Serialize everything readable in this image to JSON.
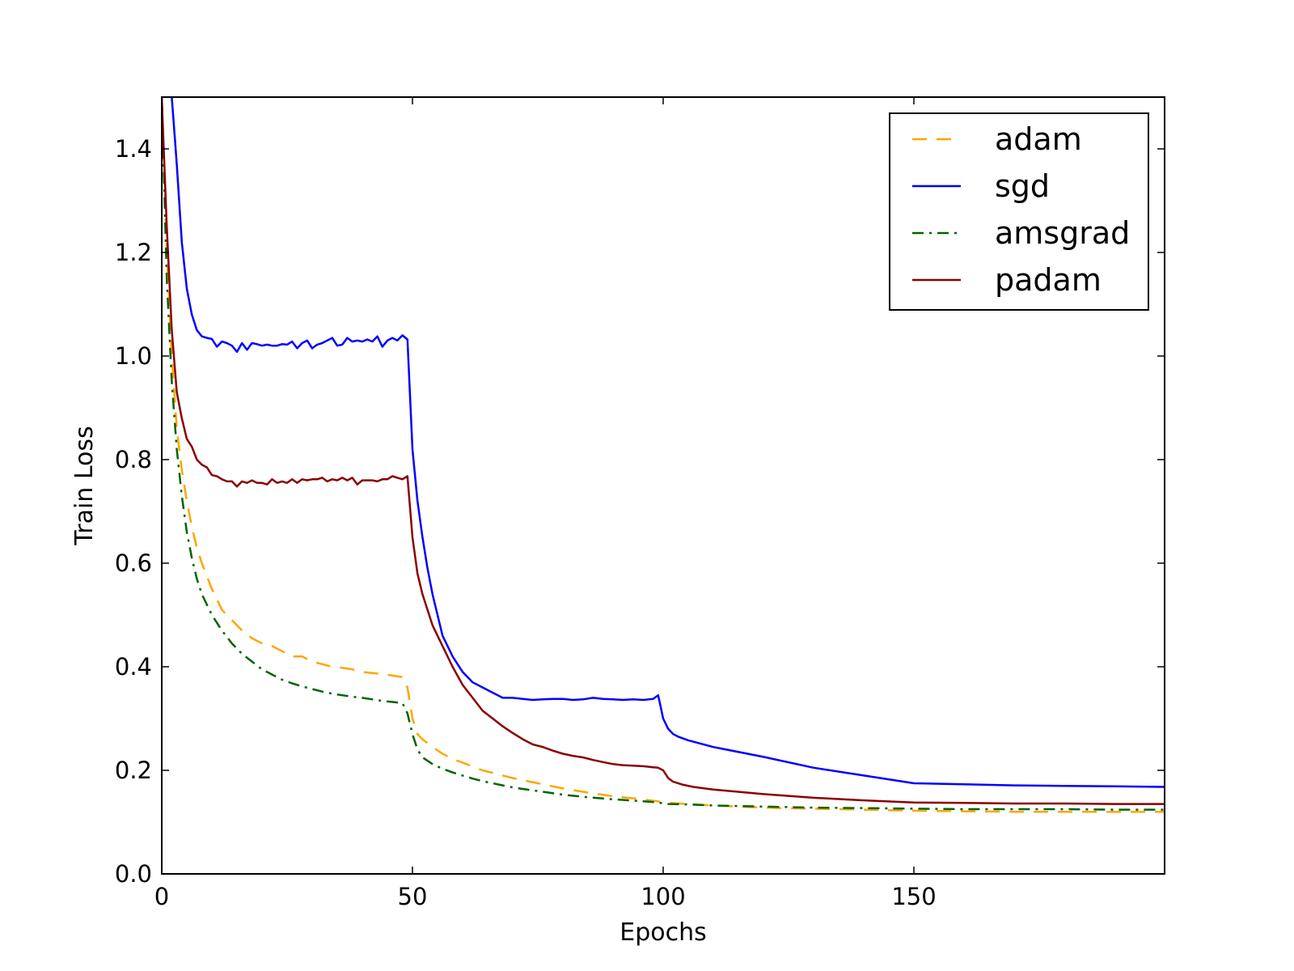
{
  "chart_data": {
    "type": "line",
    "xlabel": "Epochs",
    "ylabel": "Train Loss",
    "xlim": [
      0,
      200
    ],
    "ylim": [
      0,
      1.5
    ],
    "xticks": [
      0,
      50,
      100,
      150
    ],
    "yticks": [
      0.0,
      0.2,
      0.4,
      0.6,
      0.8,
      1.0,
      1.2,
      1.4
    ],
    "xtick_labels": [
      "0",
      "50",
      "100",
      "150"
    ],
    "ytick_labels": [
      "0.0",
      "0.2",
      "0.4",
      "0.6",
      "0.8",
      "1.0",
      "1.2",
      "1.4"
    ],
    "grid": false,
    "legend_position": "top-right",
    "series": [
      {
        "name": "adam",
        "color": "#FFA500",
        "style": "dashed",
        "x": [
          0,
          1,
          2,
          3,
          4,
          5,
          6,
          7,
          8,
          10,
          12,
          14,
          16,
          18,
          20,
          22,
          24,
          26,
          28,
          30,
          32,
          34,
          36,
          38,
          40,
          42,
          44,
          46,
          48,
          49,
          50,
          51,
          52,
          54,
          56,
          58,
          60,
          62,
          64,
          66,
          68,
          70,
          72,
          75,
          80,
          85,
          90,
          95,
          99,
          100,
          101,
          105,
          110,
          120,
          130,
          140,
          150,
          160,
          170,
          180,
          190,
          200
        ],
        "y": [
          1.5,
          1.2,
          1.0,
          0.86,
          0.78,
          0.72,
          0.67,
          0.63,
          0.6,
          0.55,
          0.51,
          0.49,
          0.47,
          0.455,
          0.445,
          0.44,
          0.43,
          0.42,
          0.42,
          0.41,
          0.405,
          0.4,
          0.398,
          0.395,
          0.39,
          0.388,
          0.386,
          0.383,
          0.38,
          0.36,
          0.3,
          0.27,
          0.26,
          0.245,
          0.232,
          0.222,
          0.215,
          0.207,
          0.2,
          0.195,
          0.19,
          0.185,
          0.181,
          0.175,
          0.165,
          0.157,
          0.15,
          0.145,
          0.14,
          0.138,
          0.137,
          0.135,
          0.132,
          0.128,
          0.126,
          0.124,
          0.122,
          0.121,
          0.12,
          0.12,
          0.12,
          0.12
        ]
      },
      {
        "name": "sgd",
        "color": "#0000FF",
        "style": "solid",
        "x": [
          2,
          3,
          4,
          5,
          6,
          7,
          8,
          9,
          10,
          11,
          12,
          13,
          14,
          15,
          16,
          17,
          18,
          19,
          20,
          21,
          22,
          23,
          24,
          25,
          26,
          27,
          28,
          29,
          30,
          31,
          32,
          33,
          34,
          35,
          36,
          37,
          38,
          39,
          40,
          41,
          42,
          43,
          44,
          45,
          46,
          47,
          48,
          49,
          50,
          51,
          52,
          53,
          54,
          55,
          56,
          58,
          60,
          62,
          64,
          66,
          68,
          70,
          72,
          74,
          76,
          78,
          80,
          82,
          84,
          86,
          88,
          90,
          92,
          94,
          96,
          98,
          99,
          100,
          101,
          102,
          103,
          105,
          110,
          120,
          130,
          140,
          150,
          160,
          170,
          180,
          190,
          200
        ],
        "y": [
          1.5,
          1.37,
          1.22,
          1.13,
          1.08,
          1.05,
          1.038,
          1.035,
          1.033,
          1.018,
          1.028,
          1.025,
          1.02,
          1.008,
          1.025,
          1.012,
          1.025,
          1.023,
          1.02,
          1.022,
          1.02,
          1.02,
          1.023,
          1.022,
          1.028,
          1.015,
          1.025,
          1.03,
          1.015,
          1.022,
          1.025,
          1.03,
          1.035,
          1.02,
          1.022,
          1.035,
          1.028,
          1.03,
          1.028,
          1.032,
          1.028,
          1.038,
          1.018,
          1.03,
          1.035,
          1.03,
          1.04,
          1.032,
          0.82,
          0.72,
          0.65,
          0.59,
          0.54,
          0.5,
          0.46,
          0.42,
          0.39,
          0.37,
          0.36,
          0.35,
          0.34,
          0.34,
          0.338,
          0.336,
          0.337,
          0.338,
          0.338,
          0.336,
          0.337,
          0.34,
          0.338,
          0.337,
          0.336,
          0.337,
          0.336,
          0.338,
          0.345,
          0.3,
          0.28,
          0.27,
          0.265,
          0.258,
          0.245,
          0.226,
          0.205,
          0.19,
          0.175,
          0.173,
          0.171,
          0.17,
          0.169,
          0.168
        ]
      },
      {
        "name": "amsgrad",
        "color": "#006400",
        "style": "dashdot",
        "x": [
          0,
          1,
          2,
          3,
          4,
          5,
          6,
          7,
          8,
          10,
          12,
          14,
          16,
          18,
          20,
          22,
          24,
          26,
          28,
          30,
          32,
          34,
          36,
          38,
          40,
          42,
          44,
          46,
          48,
          49,
          50,
          51,
          52,
          54,
          56,
          58,
          60,
          62,
          64,
          66,
          68,
          70,
          72,
          75,
          80,
          85,
          90,
          95,
          99,
          100,
          101,
          105,
          110,
          120,
          130,
          140,
          150,
          160,
          170,
          180,
          190,
          200
        ],
        "y": [
          1.5,
          1.15,
          0.95,
          0.82,
          0.73,
          0.66,
          0.61,
          0.57,
          0.54,
          0.5,
          0.47,
          0.445,
          0.425,
          0.41,
          0.395,
          0.385,
          0.375,
          0.368,
          0.362,
          0.357,
          0.352,
          0.348,
          0.345,
          0.342,
          0.34,
          0.337,
          0.334,
          0.332,
          0.33,
          0.31,
          0.27,
          0.24,
          0.225,
          0.212,
          0.203,
          0.196,
          0.19,
          0.184,
          0.179,
          0.175,
          0.171,
          0.167,
          0.164,
          0.16,
          0.153,
          0.148,
          0.144,
          0.141,
          0.138,
          0.136,
          0.135,
          0.134,
          0.132,
          0.13,
          0.128,
          0.127,
          0.126,
          0.125,
          0.125,
          0.125,
          0.124,
          0.124
        ]
      },
      {
        "name": "padam",
        "color": "#8B0000",
        "style": "solid",
        "x": [
          0,
          1,
          2,
          3,
          4,
          5,
          6,
          7,
          8,
          9,
          10,
          11,
          12,
          13,
          14,
          15,
          16,
          17,
          18,
          19,
          20,
          21,
          22,
          23,
          24,
          25,
          26,
          27,
          28,
          29,
          30,
          31,
          32,
          33,
          34,
          35,
          36,
          37,
          38,
          39,
          40,
          41,
          42,
          43,
          44,
          45,
          46,
          47,
          48,
          49,
          50,
          51,
          52,
          54,
          56,
          58,
          60,
          62,
          64,
          66,
          68,
          70,
          72,
          74,
          76,
          78,
          80,
          82,
          84,
          86,
          88,
          90,
          92,
          94,
          96,
          98,
          99,
          100,
          101,
          102,
          104,
          106,
          110,
          120,
          130,
          140,
          150,
          160,
          170,
          180,
          190,
          200
        ],
        "y": [
          1.5,
          1.25,
          1.05,
          0.93,
          0.88,
          0.84,
          0.825,
          0.8,
          0.79,
          0.785,
          0.77,
          0.768,
          0.762,
          0.758,
          0.758,
          0.748,
          0.758,
          0.755,
          0.76,
          0.755,
          0.755,
          0.752,
          0.762,
          0.755,
          0.758,
          0.755,
          0.762,
          0.755,
          0.762,
          0.76,
          0.762,
          0.762,
          0.765,
          0.758,
          0.762,
          0.76,
          0.765,
          0.76,
          0.765,
          0.752,
          0.76,
          0.76,
          0.76,
          0.758,
          0.762,
          0.762,
          0.768,
          0.765,
          0.762,
          0.768,
          0.65,
          0.58,
          0.54,
          0.48,
          0.44,
          0.4,
          0.365,
          0.34,
          0.315,
          0.3,
          0.285,
          0.272,
          0.26,
          0.25,
          0.245,
          0.238,
          0.232,
          0.228,
          0.225,
          0.22,
          0.216,
          0.212,
          0.21,
          0.209,
          0.208,
          0.206,
          0.205,
          0.2,
          0.185,
          0.178,
          0.172,
          0.168,
          0.163,
          0.154,
          0.147,
          0.142,
          0.138,
          0.137,
          0.136,
          0.136,
          0.135,
          0.135
        ]
      }
    ]
  }
}
